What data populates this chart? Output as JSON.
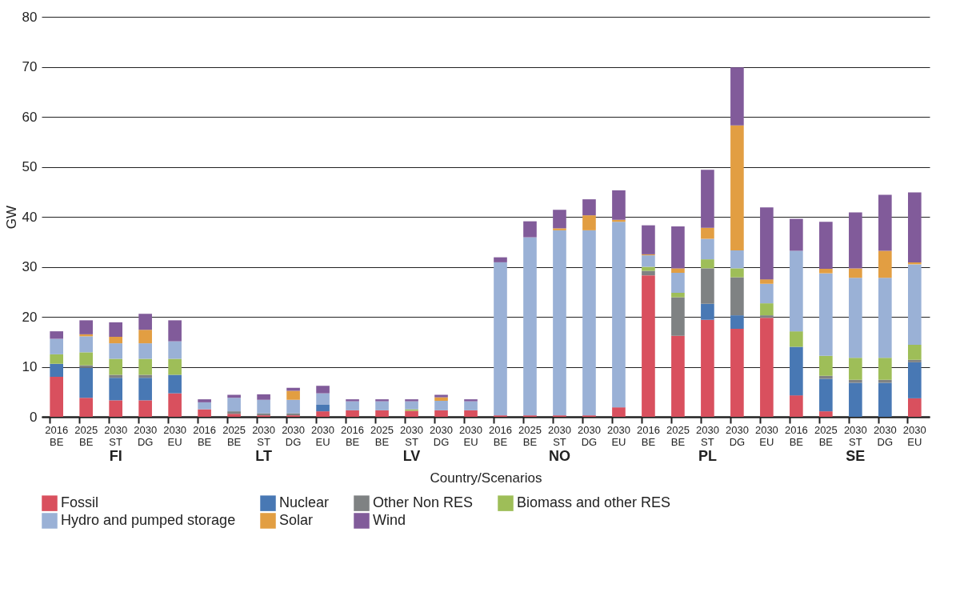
{
  "chart_data": {
    "type": "bar",
    "stacked": true,
    "xlabel": "Country/Scenarios",
    "ylabel": "GW",
    "categories": [
      "2016 BE",
      "2025 BE",
      "2030 ST",
      "2030 DG",
      "2030 EU",
      "2016 BE",
      "2025 BE",
      "2030 ST",
      "2030 DG",
      "2030 EU",
      "2016 BE",
      "2025 BE",
      "2030 ST",
      "2030 DG",
      "2030 EU",
      "2016 BE",
      "2025 BE",
      "2030 ST",
      "2030 DG",
      "2030 EU",
      "2016 BE",
      "2025 BE",
      "2030 ST",
      "2030 DG",
      "2030 EU",
      "2016 BE",
      "2025 BE",
      "2030 ST",
      "2030 DG",
      "2030 EU"
    ],
    "annotations": [
      "FI",
      "LT",
      "LV",
      "NO",
      "PL",
      "SE"
    ],
    "ylim": [
      0,
      80
    ],
    "yticks": [
      0,
      10,
      20,
      30,
      40,
      50,
      60,
      70,
      80
    ],
    "grid": "y",
    "legend": "bottom",
    "series": [
      {
        "name": "Fossil",
        "color": "#d9505e",
        "values": [
          8.0,
          3.8,
          3.3,
          3.3,
          4.7,
          1.5,
          0.6,
          0.3,
          0.3,
          1.1,
          1.3,
          1.3,
          1.2,
          1.3,
          1.3,
          0.3,
          0.3,
          0.3,
          0.3,
          1.9,
          28.3,
          16.2,
          19.4,
          17.6,
          19.8,
          4.3,
          1.1,
          null,
          null,
          3.7
        ]
      },
      {
        "name": "Nuclear",
        "color": "#4878b4",
        "values": [
          2.6,
          6.0,
          4.5,
          4.5,
          3.7,
          null,
          null,
          null,
          null,
          1.3,
          null,
          null,
          null,
          null,
          null,
          null,
          null,
          null,
          null,
          null,
          null,
          null,
          3.2,
          2.7,
          null,
          9.7,
          6.5,
          6.8,
          6.8,
          7.2
        ]
      },
      {
        "name": "Other Non RES",
        "color": "#7f8283",
        "values": [
          null,
          0.5,
          0.6,
          0.6,
          null,
          null,
          0.5,
          0.4,
          0.4,
          null,
          null,
          null,
          null,
          null,
          null,
          null,
          null,
          null,
          null,
          null,
          0.9,
          7.7,
          7.1,
          7.6,
          0.5,
          null,
          0.6,
          0.6,
          0.6,
          0.5
        ]
      },
      {
        "name": "Biomass and other RES",
        "color": "#9ebe58",
        "values": [
          1.9,
          2.6,
          3.2,
          3.2,
          3.2,
          null,
          null,
          null,
          null,
          null,
          null,
          null,
          0.3,
          null,
          null,
          null,
          null,
          null,
          null,
          null,
          0.8,
          0.9,
          1.8,
          1.8,
          2.4,
          3.1,
          4.0,
          4.4,
          4.4,
          3.0
        ]
      },
      {
        "name": "Hydro and pumped storage",
        "color": "#9ab1d6",
        "values": [
          3.1,
          3.2,
          3.1,
          3.1,
          3.5,
          1.4,
          2.7,
          2.7,
          2.7,
          2.3,
          1.8,
          1.8,
          1.6,
          1.9,
          1.8,
          30.6,
          35.6,
          37.0,
          37.0,
          37.1,
          2.3,
          4.0,
          4.1,
          3.6,
          3.9,
          16.1,
          16.5,
          16.0,
          16.0,
          16.1
        ]
      },
      {
        "name": "Solar",
        "color": "#e29e42",
        "values": [
          null,
          0.4,
          1.3,
          2.7,
          null,
          null,
          null,
          null,
          1.8,
          null,
          null,
          null,
          null,
          0.7,
          null,
          null,
          null,
          0.4,
          3.0,
          0.4,
          0.2,
          0.9,
          2.2,
          25.0,
          0.9,
          null,
          0.9,
          1.9,
          5.4,
          0.4
        ]
      },
      {
        "name": "Wind",
        "color": "#815b9a",
        "values": [
          1.5,
          2.8,
          2.9,
          3.2,
          4.2,
          0.6,
          0.6,
          1.1,
          0.6,
          1.5,
          0.4,
          0.4,
          0.4,
          0.5,
          0.4,
          1.0,
          3.2,
          3.7,
          3.2,
          5.9,
          5.8,
          8.4,
          11.6,
          11.6,
          14.4,
          6.4,
          9.4,
          11.2,
          11.2,
          14.0
        ]
      }
    ]
  }
}
